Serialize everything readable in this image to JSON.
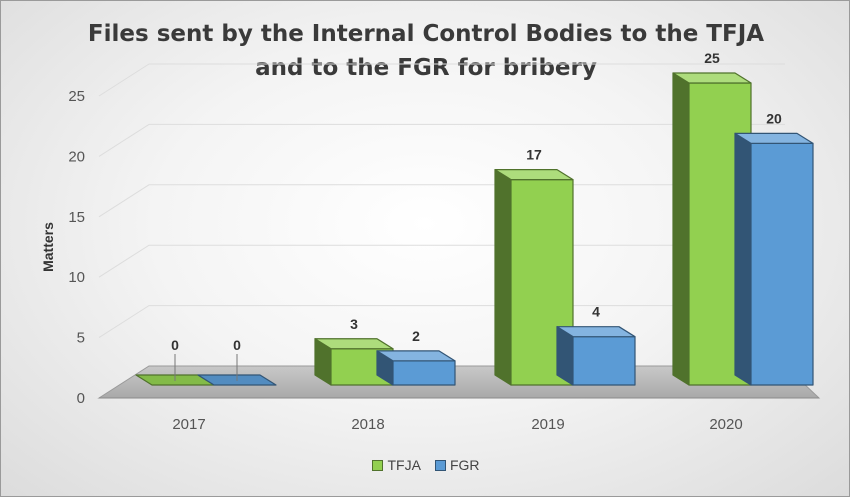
{
  "chart_data": {
    "type": "bar",
    "title": "Files sent by the Internal Control Bodies to the TFJA and to the FGR for bribery",
    "xlabel": "",
    "ylabel": "Matters",
    "categories": [
      "2017",
      "2018",
      "2019",
      "2020"
    ],
    "series": [
      {
        "name": "TFJA",
        "values": [
          0,
          3,
          17,
          25
        ],
        "color": "#92d050"
      },
      {
        "name": "FGR",
        "values": [
          0,
          2,
          4,
          20
        ],
        "color": "#5b9bd5"
      }
    ],
    "ylim": [
      0,
      25
    ],
    "yticks": [
      0,
      5,
      10,
      15,
      20,
      25
    ],
    "grid": true,
    "legend_position": "bottom",
    "style": "3d-clustered-column"
  }
}
